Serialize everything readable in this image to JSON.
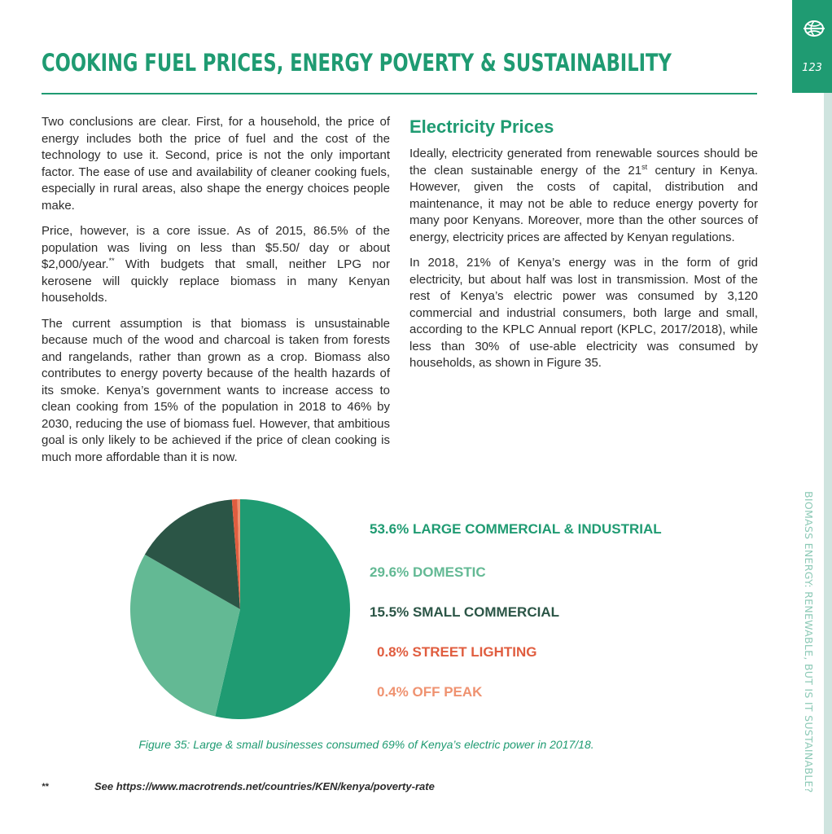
{
  "header": {
    "title": "COOKING FUEL PRICES, ENERGY POVERTY & SUSTAINABILITY",
    "page_number": "123",
    "side_title": "BIOMASS ENERGY: RENEWABLE, BUT IS IT SUSTAINABLE?",
    "logo_icon": "globe-icon"
  },
  "left_column": {
    "paragraphs": [
      "Two conclusions are clear.  First, for a household, the price of energy includes both the price of fuel and the cost of the technology to use it.  Second, price is not the only important factor.  The ease of use and availability of cleaner cooking fuels, especially in rural areas, also shape the energy choices people make.",
      "Price, however, is a core issue.  As of 2015, 86.5% of the population was living on less than $5.50/ day or about $2,000/year.",
      "The current assumption is that biomass is unsustainable because much of the wood and charcoal is taken from forests and rangelands, rather than grown as a crop. Biomass also contributes to energy poverty because of the health hazards of its smoke.  Kenya’s government wants to increase access to clean cooking from 15% of the population in 2018 to 46% by 2030, reducing the use of biomass fuel. However, that ambitious goal is only likely to be achieved if the price of clean cooking is much more affordable than it is now."
    ],
    "p2_footnote_mark": "**",
    "p2_continuation": "  With budgets that small, neither LPG nor kerosene will quickly replace biomass in many Kenyan households."
  },
  "right_column": {
    "heading": "Electricity Prices",
    "p1_part1": "Ideally, electricity generated from renewable sources should be the clean sustainable energy of the 21",
    "p1_sup": "st",
    "p1_part2": " century in Kenya.  However, given the costs of capital, distribution and maintenance, it may not be able to reduce energy poverty for many poor Kenyans.  Moreover, more than the other sources of energy, electricity prices are affected by Kenyan regulations.",
    "p2": "In 2018, 21% of Kenya’s energy was in the form of grid electricity, but about half was lost in transmission.  Most of the rest of Kenya’s electric power was consumed by 3,120 commercial and industrial consumers, both large and small, according to the KPLC Annual report (KPLC, 2017/2018), while less than 30% of use-able electricity was consumed by households, as shown in Figure 35."
  },
  "chart_data": {
    "type": "pie",
    "title": "",
    "slices": [
      {
        "label": "LARGE COMMERCIAL & INDUSTRIAL",
        "value_text": "53.6%",
        "value": 53.6,
        "color": "#1f9b72"
      },
      {
        "label": "DOMESTIC",
        "value_text": "29.6%",
        "value": 29.6,
        "color": "#63b994"
      },
      {
        "label": "SMALL COMMERCIAL",
        "value_text": "15.5%",
        "value": 15.5,
        "color": "#2b5546"
      },
      {
        "label": "STREET LIGHTING",
        "value_text": "0.8%",
        "value": 0.8,
        "color": "#e05d3f"
      },
      {
        "label": "OFF PEAK",
        "value_text": "0.4%",
        "value": 0.4,
        "color": "#ef9270"
      }
    ],
    "start_angle": "12 o'clock",
    "direction": "clockwise",
    "legend_placement": "right"
  },
  "figure": {
    "caption": "Figure 35: Large & small businesses consumed 69% of Kenya’s electric power in 2017/18."
  },
  "footnote": {
    "mark": "**",
    "text": "See https://www.macrotrends.net/countries/KEN/kenya/poverty-rate"
  }
}
